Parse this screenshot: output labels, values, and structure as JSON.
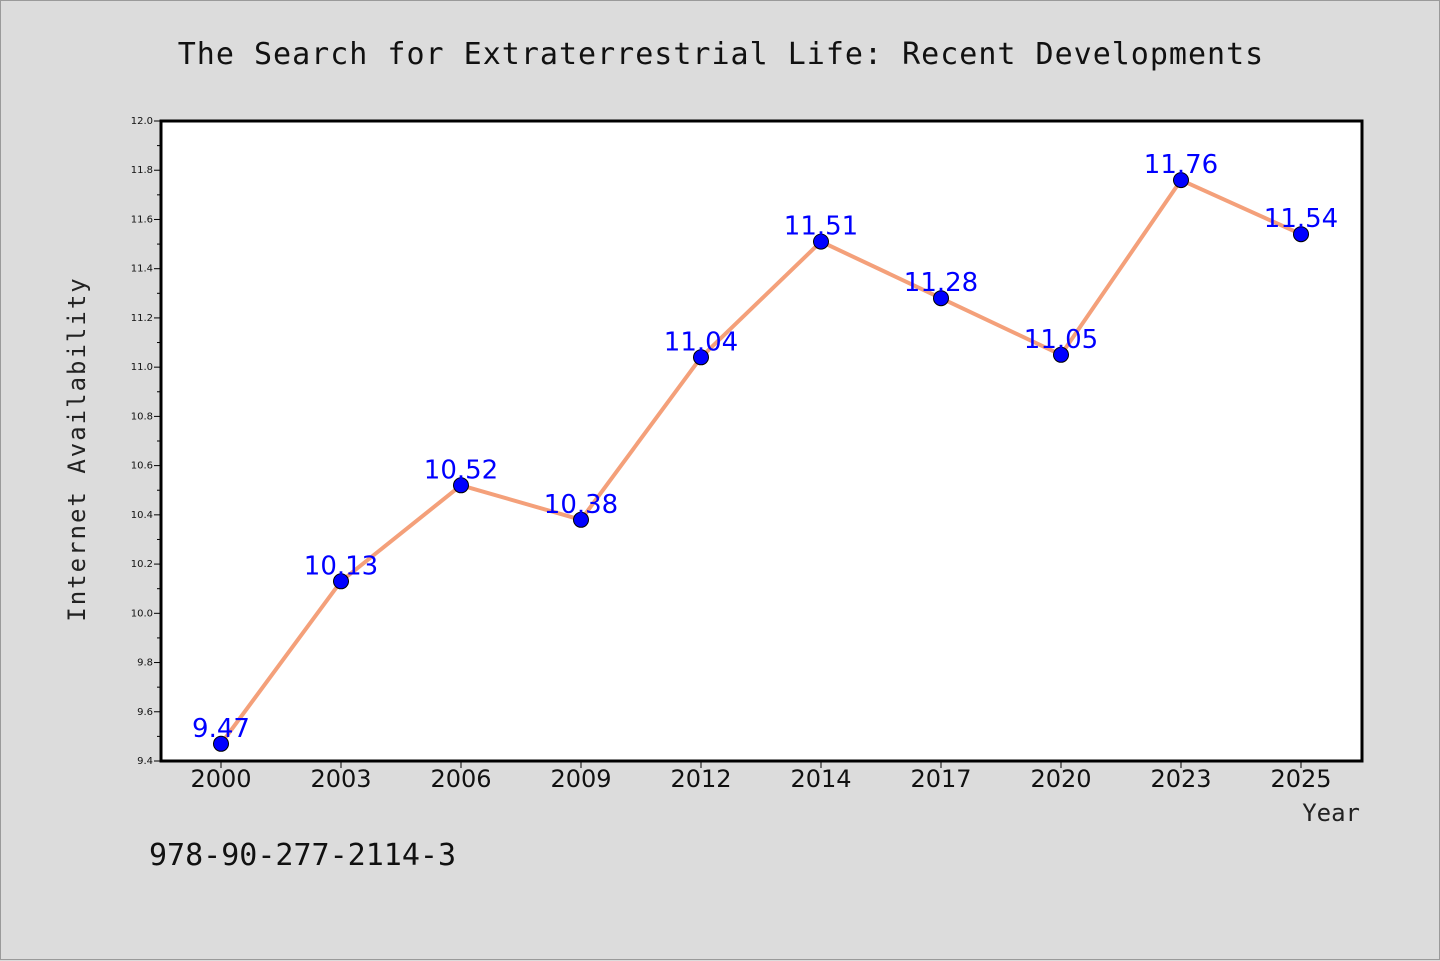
{
  "chart_data": {
    "type": "line",
    "title": "The Search for Extraterrestrial Life: Recent Developments",
    "xlabel": "Year",
    "ylabel": "Internet Availability",
    "categories": [
      "2000",
      "2003",
      "2006",
      "2009",
      "2012",
      "2014",
      "2017",
      "2020",
      "2023",
      "2025"
    ],
    "series": [
      {
        "values": [
          9.47,
          10.13,
          10.52,
          10.38,
          11.04,
          11.51,
          11.28,
          11.05,
          11.76,
          11.54
        ],
        "labels": [
          "9.47",
          "10.13",
          "10.52",
          "10.38",
          "11.04",
          "11.51",
          "11.28",
          "11.05",
          "11.76",
          "11.54"
        ],
        "line_color": "#f4a07a",
        "marker_color": "#0000ff"
      }
    ],
    "ylim": [
      9.4,
      12.0
    ],
    "yticks": [
      "9.4",
      "9.6",
      "9.8",
      "10.0",
      "10.2",
      "10.4",
      "10.6",
      "10.8",
      "11.0",
      "11.2",
      "11.4",
      "11.6",
      "11.8",
      "12.0"
    ],
    "grid": false,
    "legend": "none"
  },
  "footer": {
    "code": "978-90-277-2114-3"
  },
  "colors": {
    "background": "#dcdcdc",
    "plot_background": "#ffffff",
    "axis": "#000000",
    "data_label": "#0000ff"
  }
}
